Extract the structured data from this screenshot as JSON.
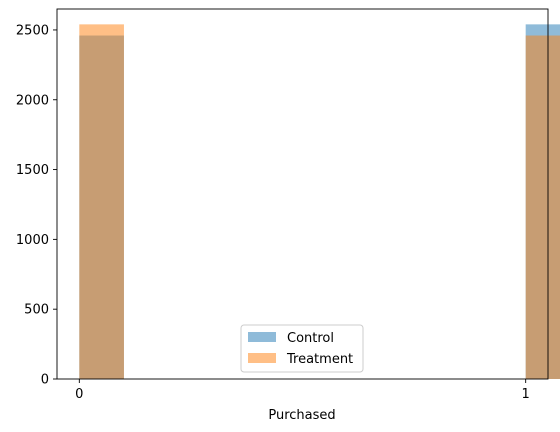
{
  "chart_data": {
    "type": "bar",
    "title": "",
    "xlabel": "Purchased",
    "ylabel": "",
    "x_ticks": [
      "0",
      "1"
    ],
    "y_ticks": [
      0,
      500,
      1000,
      1500,
      2000,
      2500
    ],
    "ylim": [
      0,
      2650
    ],
    "grid": false,
    "legend_placement": "lower center",
    "bar_alpha": 0.5,
    "series": [
      {
        "name": "Control",
        "color": "#1f77b4",
        "bins": [
          {
            "x": 0,
            "value": 2460
          },
          {
            "x": 1,
            "value": 2540
          }
        ]
      },
      {
        "name": "Treatment",
        "color": "#ff7f0e",
        "bins": [
          {
            "x": 0,
            "value": 2540
          },
          {
            "x": 1,
            "value": 2460
          }
        ]
      }
    ]
  }
}
